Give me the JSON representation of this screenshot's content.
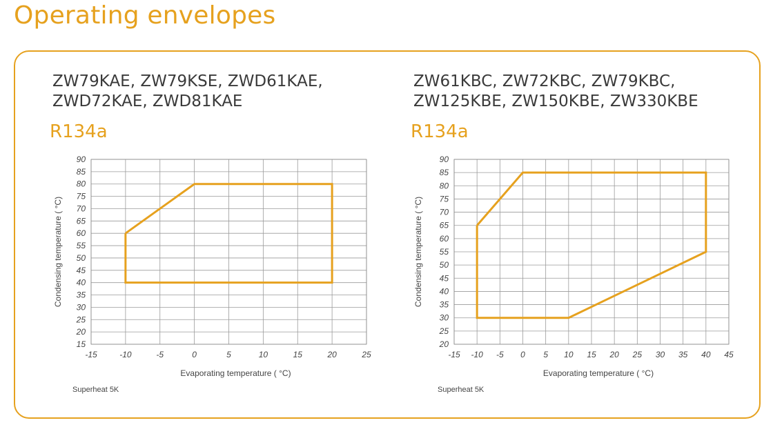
{
  "page": {
    "title": "Operating envelopes",
    "accent_color": "#E6A11E"
  },
  "charts": [
    {
      "models_line1": "ZW79KAE, ZW79KSE, ZWD61KAE,",
      "models_line2": "ZWD72KAE, ZWD81KAE",
      "refrigerant": "R134a",
      "footnote": "Superheat 5K"
    },
    {
      "models_line1": "ZW61KBC, ZW72KBC, ZW79KBC,",
      "models_line2": "ZW125KBE, ZW150KBE, ZW330KBE",
      "refrigerant": "R134a",
      "footnote": "Superheat 5K"
    }
  ],
  "chart_data": [
    {
      "type": "area",
      "series": [
        {
          "x": [
            -10,
            0,
            20,
            20,
            -10,
            -10
          ],
          "y": [
            60,
            80,
            80,
            40,
            40,
            60
          ]
        }
      ],
      "xlabel": "Evaporating temperature ( °C)",
      "ylabel": "Condensing temperature ( °C)",
      "xlim": [
        -15,
        25
      ],
      "ylim": [
        15,
        90
      ],
      "x_ticks": [
        -15,
        -10,
        -5,
        0,
        5,
        10,
        15,
        20,
        25
      ],
      "y_ticks": [
        15,
        20,
        25,
        30,
        35,
        40,
        45,
        50,
        55,
        60,
        65,
        70,
        75,
        80,
        85,
        90
      ],
      "grid": true,
      "line_color": "#E6A11E"
    },
    {
      "type": "area",
      "series": [
        {
          "x": [
            -10,
            0,
            40,
            40,
            10,
            -10,
            -10
          ],
          "y": [
            65,
            85,
            85,
            55,
            30,
            30,
            65
          ]
        }
      ],
      "xlabel": "Evaporating temperature ( °C)",
      "ylabel": "Condensing temperature ( °C)",
      "xlim": [
        -15,
        45
      ],
      "ylim": [
        20,
        90
      ],
      "x_ticks": [
        -15,
        -10,
        -5,
        0,
        5,
        10,
        15,
        20,
        25,
        30,
        35,
        40,
        45
      ],
      "y_ticks": [
        20,
        25,
        30,
        35,
        40,
        45,
        50,
        55,
        60,
        65,
        70,
        75,
        80,
        85,
        90
      ],
      "grid": true,
      "line_color": "#E6A11E"
    }
  ]
}
